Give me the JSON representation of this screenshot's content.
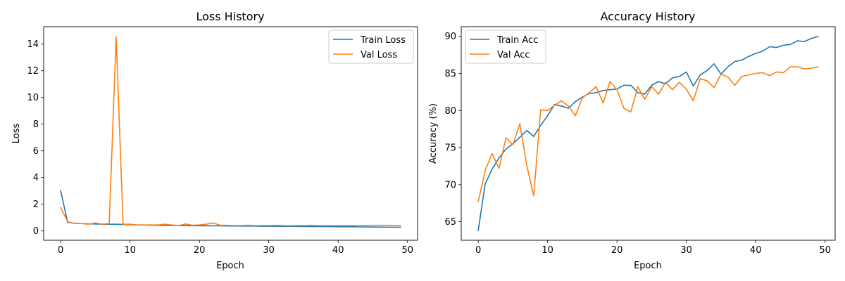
{
  "colors": {
    "train": "#1f77b4",
    "val": "#ff7f0e"
  },
  "chart_data": [
    {
      "type": "line",
      "title": "Loss History",
      "xlabel": "Epoch",
      "ylabel": "Loss",
      "xlim": [
        -2.45,
        51.45
      ],
      "ylim": [
        -0.7,
        15.3
      ],
      "xticks": [
        0,
        10,
        20,
        30,
        40,
        50
      ],
      "yticks": [
        0,
        2,
        4,
        6,
        8,
        10,
        12,
        14
      ],
      "grid": false,
      "legend": "top-right",
      "x": [
        0,
        1,
        2,
        3,
        4,
        5,
        6,
        7,
        8,
        9,
        10,
        11,
        12,
        13,
        14,
        15,
        16,
        17,
        18,
        19,
        20,
        21,
        22,
        23,
        24,
        25,
        26,
        27,
        28,
        29,
        30,
        31,
        32,
        33,
        34,
        35,
        36,
        37,
        38,
        39,
        40,
        41,
        42,
        43,
        44,
        45,
        46,
        47,
        48,
        49
      ],
      "series": [
        {
          "name": "Train Loss",
          "color": "#1f77b4",
          "values": [
            3.02,
            0.65,
            0.57,
            0.55,
            0.53,
            0.52,
            0.5,
            0.5,
            0.5,
            0.48,
            0.47,
            0.45,
            0.44,
            0.43,
            0.42,
            0.42,
            0.41,
            0.4,
            0.4,
            0.39,
            0.39,
            0.38,
            0.38,
            0.38,
            0.37,
            0.37,
            0.36,
            0.36,
            0.36,
            0.35,
            0.35,
            0.35,
            0.34,
            0.34,
            0.34,
            0.33,
            0.33,
            0.33,
            0.32,
            0.32,
            0.31,
            0.31,
            0.31,
            0.3,
            0.3,
            0.29,
            0.29,
            0.28,
            0.28,
            0.28
          ]
        },
        {
          "name": "Val Loss",
          "color": "#ff7f0e",
          "values": [
            1.75,
            0.7,
            0.55,
            0.55,
            0.5,
            0.6,
            0.5,
            0.55,
            14.55,
            0.5,
            0.5,
            0.45,
            0.45,
            0.45,
            0.45,
            0.5,
            0.45,
            0.4,
            0.52,
            0.42,
            0.45,
            0.5,
            0.6,
            0.42,
            0.42,
            0.4,
            0.4,
            0.42,
            0.4,
            0.4,
            0.4,
            0.42,
            0.4,
            0.38,
            0.4,
            0.4,
            0.42,
            0.4,
            0.4,
            0.4,
            0.4,
            0.4,
            0.4,
            0.4,
            0.4,
            0.42,
            0.42,
            0.42,
            0.4,
            0.4
          ]
        }
      ]
    },
    {
      "type": "line",
      "title": "Accuracy History",
      "xlabel": "Epoch",
      "ylabel": "Accuracy (%)",
      "xlim": [
        -2.45,
        51.45
      ],
      "ylim": [
        62.5,
        91.3
      ],
      "xticks": [
        0,
        10,
        20,
        30,
        40,
        50
      ],
      "yticks": [
        65,
        70,
        75,
        80,
        85,
        90
      ],
      "grid": false,
      "legend": "top-left",
      "x": [
        0,
        1,
        2,
        3,
        4,
        5,
        6,
        7,
        8,
        9,
        10,
        11,
        12,
        13,
        14,
        15,
        16,
        17,
        18,
        19,
        20,
        21,
        22,
        23,
        24,
        25,
        26,
        27,
        28,
        29,
        30,
        31,
        32,
        33,
        34,
        35,
        36,
        37,
        38,
        39,
        40,
        41,
        42,
        43,
        44,
        45,
        46,
        47,
        48,
        49
      ],
      "series": [
        {
          "name": "Train Acc",
          "color": "#1f77b4",
          "values": [
            63.8,
            70.1,
            72.1,
            73.6,
            74.8,
            75.5,
            76.4,
            77.3,
            76.5,
            78.0,
            79.3,
            80.8,
            80.6,
            80.3,
            81.2,
            81.8,
            82.3,
            82.4,
            82.7,
            82.8,
            82.9,
            83.4,
            83.4,
            82.4,
            82.2,
            83.4,
            83.9,
            83.6,
            84.4,
            84.6,
            85.2,
            83.3,
            84.8,
            85.4,
            86.3,
            84.9,
            85.9,
            86.6,
            86.8,
            87.3,
            87.7,
            88.0,
            88.6,
            88.5,
            88.8,
            88.9,
            89.4,
            89.3,
            89.7,
            90.0
          ]
        },
        {
          "name": "Val Acc",
          "color": "#ff7f0e",
          "values": [
            67.7,
            71.9,
            74.2,
            72.2,
            76.3,
            75.4,
            78.2,
            72.6,
            68.5,
            80.1,
            80.0,
            80.7,
            81.3,
            80.6,
            79.3,
            81.7,
            82.4,
            83.2,
            81.0,
            83.9,
            82.8,
            80.3,
            79.8,
            83.2,
            81.5,
            83.2,
            82.2,
            83.8,
            82.8,
            83.8,
            82.9,
            81.3,
            84.3,
            84.0,
            83.1,
            84.9,
            84.5,
            83.4,
            84.6,
            84.8,
            85.0,
            85.1,
            84.7,
            85.2,
            85.1,
            85.9,
            85.9,
            85.6,
            85.7,
            85.9
          ]
        }
      ]
    }
  ]
}
